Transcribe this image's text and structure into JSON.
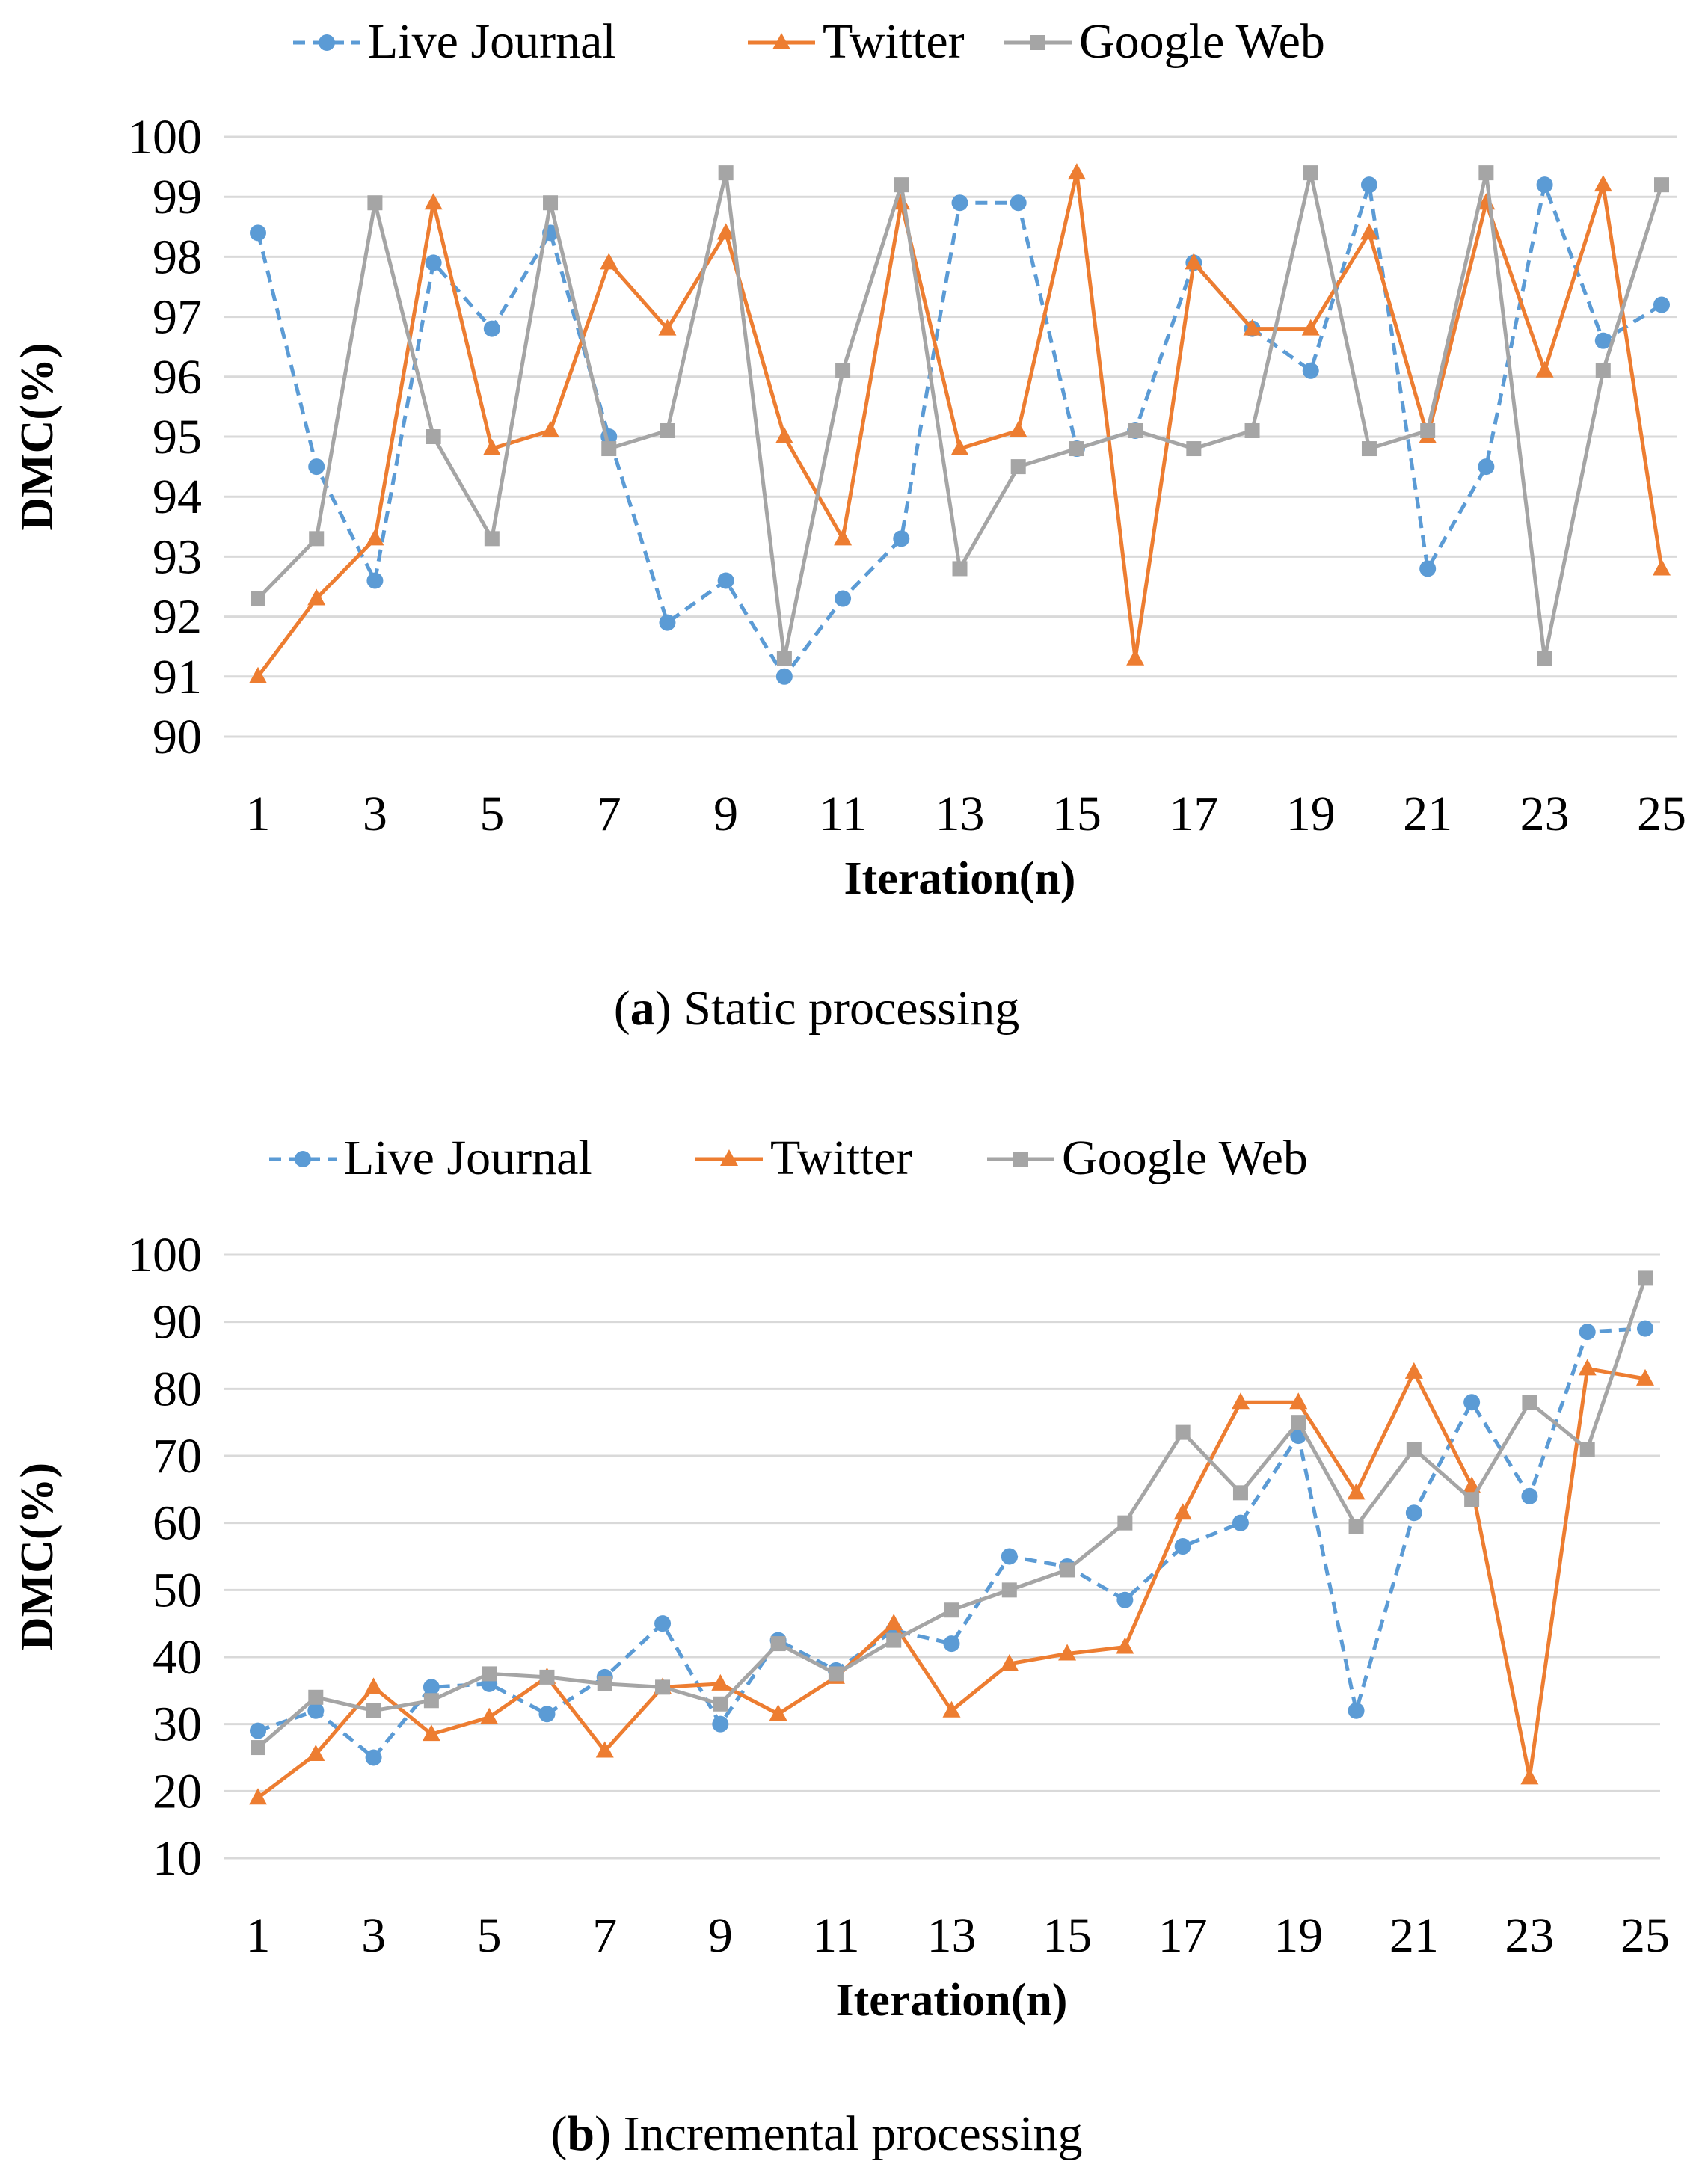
{
  "chart_data": [
    {
      "type": "line",
      "caption": {
        "letter": "a",
        "text": "Static processing"
      },
      "xlabel": "Iteration(n)",
      "ylabel": "DMC(%)",
      "ylim": [
        90,
        100
      ],
      "yticks": [
        90,
        91,
        92,
        93,
        94,
        95,
        96,
        97,
        98,
        99,
        100
      ],
      "x": [
        1,
        2,
        3,
        4,
        5,
        6,
        7,
        8,
        9,
        10,
        11,
        12,
        13,
        14,
        15,
        16,
        17,
        18,
        19,
        20,
        21,
        22,
        23,
        24,
        25
      ],
      "xticks": [
        1,
        3,
        5,
        7,
        9,
        11,
        13,
        15,
        17,
        19,
        21,
        23,
        25
      ],
      "grid": true,
      "legend_position": "top",
      "series": [
        {
          "name": "Live Journal",
          "color": "#5b9bd5",
          "marker": "circle",
          "dashed": true,
          "values": [
            98.4,
            94.5,
            92.6,
            97.9,
            96.8,
            98.4,
            95.0,
            91.9,
            92.6,
            91.0,
            92.3,
            93.3,
            98.9,
            98.9,
            94.8,
            95.1,
            97.9,
            96.8,
            96.1,
            99.2,
            92.8,
            94.5,
            99.2,
            96.6,
            97.2
          ]
        },
        {
          "name": "Twitter",
          "color": "#ed7d31",
          "marker": "triangle",
          "dashed": false,
          "values": [
            91.0,
            92.3,
            93.3,
            98.9,
            94.8,
            95.1,
            97.9,
            96.8,
            98.4,
            95.0,
            93.3,
            98.9,
            94.8,
            95.1,
            99.4,
            91.3,
            97.9,
            96.8,
            96.8,
            98.4,
            95.0,
            98.9,
            96.1,
            99.2,
            92.8
          ]
        },
        {
          "name": "Google Web",
          "color": "#a5a5a5",
          "marker": "square",
          "dashed": false,
          "values": [
            92.3,
            93.3,
            98.9,
            95.0,
            93.3,
            98.9,
            94.8,
            95.1,
            99.4,
            91.3,
            96.1,
            99.2,
            92.8,
            94.5,
            94.8,
            95.1,
            94.8,
            95.1,
            99.4,
            94.8,
            95.1,
            99.4,
            91.3,
            96.1,
            99.2
          ]
        }
      ]
    },
    {
      "type": "line",
      "caption": {
        "letter": "b",
        "text": "Incremental processing"
      },
      "xlabel": "Iteration(n)",
      "ylabel": "DMC(%)",
      "ylim": [
        10,
        100
      ],
      "yticks": [
        10,
        20,
        30,
        40,
        50,
        60,
        70,
        80,
        90,
        100
      ],
      "x": [
        1,
        2,
        3,
        4,
        5,
        6,
        7,
        8,
        9,
        10,
        11,
        12,
        13,
        14,
        15,
        16,
        17,
        18,
        19,
        20,
        21,
        22,
        23,
        24,
        25
      ],
      "xticks": [
        1,
        3,
        5,
        7,
        9,
        11,
        13,
        15,
        17,
        19,
        21,
        23,
        25
      ],
      "grid": true,
      "legend_position": "top",
      "series": [
        {
          "name": "Live Journal",
          "color": "#5b9bd5",
          "marker": "circle",
          "dashed": true,
          "values": [
            29,
            32,
            25,
            35.5,
            36,
            31.5,
            37,
            45,
            30,
            42.5,
            38,
            44,
            42,
            55,
            53.5,
            48.5,
            56.5,
            60,
            73,
            32,
            61.5,
            78,
            64,
            88.5,
            89
          ]
        },
        {
          "name": "Twitter",
          "color": "#ed7d31",
          "marker": "triangle",
          "dashed": false,
          "values": [
            19,
            25.5,
            35.5,
            28.5,
            31,
            37,
            26,
            35.5,
            36,
            31.5,
            37,
            45,
            32,
            39,
            40.5,
            41.5,
            61.5,
            78,
            78,
            64.5,
            82.5,
            65.5,
            22,
            83,
            81.5
          ]
        },
        {
          "name": "Google Web",
          "color": "#a5a5a5",
          "marker": "square",
          "dashed": false,
          "values": [
            26.5,
            34,
            32,
            33.5,
            37.5,
            37,
            36,
            35.5,
            33,
            42,
            37.5,
            42.5,
            47,
            50,
            53,
            60,
            73.5,
            64.5,
            75,
            59.5,
            71,
            63.5,
            78,
            71,
            96.5
          ]
        }
      ]
    }
  ]
}
